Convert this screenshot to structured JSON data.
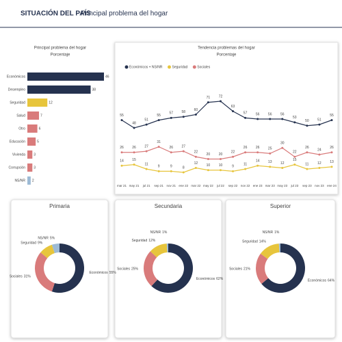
{
  "header": {
    "title": "SITUACIÓN DEL PAÍS",
    "subtitle": "Principal problema del hogar"
  },
  "chart_data": [
    {
      "type": "bar",
      "title": "Principal problema del hogar",
      "subtitle": "Porcentaje",
      "categories": [
        "Económicos",
        "Desempleo",
        "Seguridad",
        "Salud",
        "Otro",
        "Educación",
        "Vivienda",
        "Corrupción",
        "NS/NR"
      ],
      "values": [
        46,
        38,
        12,
        7,
        6,
        5,
        3,
        3,
        2
      ],
      "colors": [
        "#25324f",
        "#25324f",
        "#e7c53c",
        "#d97b7b",
        "#d97b7b",
        "#d97b7b",
        "#d97b7b",
        "#d97b7b",
        "#9dbad5"
      ]
    },
    {
      "type": "line",
      "title": "Tendencia problemas del hogar",
      "subtitle": "Porcentaje",
      "categories": [
        "mar 21",
        "may 21",
        "jul 21",
        "sep 21",
        "nov 21",
        "ene 22",
        "mar 22",
        "may 22",
        "jul 22",
        "sep 22",
        "nov 22",
        "ene 23",
        "mar 23",
        "may 23",
        "jul 23",
        "sep 23",
        "nov 23",
        "ene 24"
      ],
      "series": [
        {
          "name": "Económicos + NS/NR",
          "color": "#25324f",
          "values": [
            55,
            48,
            51,
            55,
            57,
            58,
            60,
            71,
            72,
            63,
            57,
            56,
            56,
            56,
            53,
            50,
            51,
            55
          ]
        },
        {
          "name": "Seguridad",
          "color": "#e7c53c",
          "values": [
            14,
            15,
            11,
            9,
            9,
            8,
            12,
            10,
            10,
            9,
            11,
            14,
            13,
            12,
            15,
            11,
            12,
            13
          ]
        },
        {
          "name": "Sociales",
          "color": "#d97b7b",
          "values": [
            26,
            26,
            27,
            31,
            26,
            27,
            22,
            20,
            20,
            22,
            26,
            26,
            25,
            30,
            22,
            26,
            24,
            26
          ]
        }
      ]
    },
    {
      "type": "pie",
      "title": "Primaria",
      "categories": [
        "Económicos",
        "Sociales",
        "Seguridad",
        "NS/NR"
      ],
      "values": [
        55,
        31,
        9,
        5
      ],
      "value_labels": [
        "55%",
        "31%",
        "9%",
        "5%"
      ],
      "colors": [
        "#25324f",
        "#d97b7b",
        "#e7c53c",
        "#9dbad5"
      ]
    },
    {
      "type": "pie",
      "title": "Secundaria",
      "categories": [
        "Económicos",
        "Sociales",
        "Seguridad",
        "NS/NR"
      ],
      "values": [
        62,
        25,
        12,
        1
      ],
      "value_labels": [
        "62%",
        "25%",
        "12%",
        "1%"
      ],
      "colors": [
        "#25324f",
        "#d97b7b",
        "#e7c53c",
        "#9dbad5"
      ]
    },
    {
      "type": "pie",
      "title": "Superior",
      "categories": [
        "Económicos",
        "Sociales",
        "Seguridad",
        "NS/NR"
      ],
      "values": [
        64,
        21,
        14,
        1
      ],
      "value_labels": [
        "64%",
        "21%",
        "14%",
        "1%"
      ],
      "colors": [
        "#25324f",
        "#d97b7b",
        "#e7c53c",
        "#9dbad5"
      ]
    }
  ]
}
